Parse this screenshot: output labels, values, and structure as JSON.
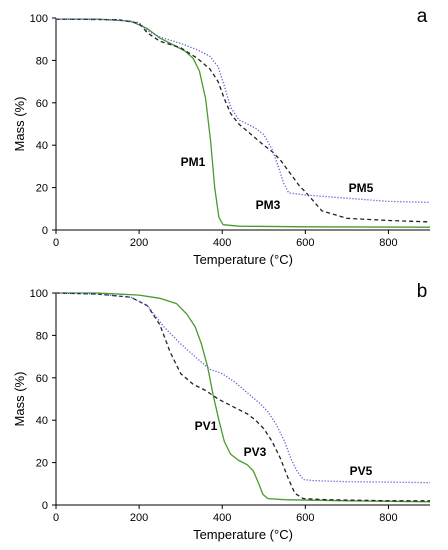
{
  "chart_data": [
    {
      "type": "line",
      "panel_label": "a",
      "xlabel": "Temperature (°C)",
      "ylabel": "Mass (%)",
      "xlim": [
        0,
        900
      ],
      "ylim": [
        0,
        100
      ],
      "xticks": [
        0,
        200,
        400,
        600,
        800
      ],
      "yticks": [
        0,
        20,
        40,
        60,
        80,
        100
      ],
      "grid": false,
      "series": [
        {
          "name": "PM1",
          "color": "#4a9a2e",
          "style": "solid",
          "points": [
            [
              0,
              99.5
            ],
            [
              100,
              99.5
            ],
            [
              180,
              98.5
            ],
            [
              220,
              95
            ],
            [
              250,
              90.5
            ],
            [
              280,
              87.5
            ],
            [
              310,
              84.5
            ],
            [
              330,
              81
            ],
            [
              345,
              75
            ],
            [
              360,
              62
            ],
            [
              372,
              42
            ],
            [
              382,
              20
            ],
            [
              392,
              6
            ],
            [
              402,
              2.5
            ],
            [
              440,
              1.8
            ],
            [
              600,
              1.5
            ],
            [
              900,
              1.3
            ]
          ]
        },
        {
          "name": "PM3",
          "color": "#222222",
          "style": "dashed",
          "points": [
            [
              0,
              99.5
            ],
            [
              150,
              99.2
            ],
            [
              200,
              97.5
            ],
            [
              220,
              93
            ],
            [
              250,
              89
            ],
            [
              300,
              86
            ],
            [
              340,
              81
            ],
            [
              370,
              76
            ],
            [
              390,
              70
            ],
            [
              405,
              62
            ],
            [
              420,
              55
            ],
            [
              440,
              50
            ],
            [
              470,
              45
            ],
            [
              500,
              40
            ],
            [
              520,
              37
            ],
            [
              540,
              33
            ],
            [
              555,
              29
            ],
            [
              570,
              25
            ],
            [
              585,
              21
            ],
            [
              600,
              18
            ],
            [
              640,
              9
            ],
            [
              700,
              5.5
            ],
            [
              800,
              4.5
            ],
            [
              900,
              3.8
            ]
          ]
        },
        {
          "name": "PM5",
          "color": "#5a5ad8",
          "style": "dotted",
          "points": [
            [
              0,
              99.5
            ],
            [
              150,
              99.2
            ],
            [
              200,
              97.8
            ],
            [
              220,
              94
            ],
            [
              250,
              91
            ],
            [
              300,
              88
            ],
            [
              340,
              85
            ],
            [
              370,
              82
            ],
            [
              390,
              77
            ],
            [
              405,
              68
            ],
            [
              420,
              58
            ],
            [
              440,
              52
            ],
            [
              460,
              50
            ],
            [
              480,
              48
            ],
            [
              500,
              45
            ],
            [
              520,
              38
            ],
            [
              535,
              30
            ],
            [
              548,
              22
            ],
            [
              560,
              17.5
            ],
            [
              600,
              16.5
            ],
            [
              700,
              15
            ],
            [
              800,
              13.5
            ],
            [
              900,
              13
            ]
          ]
        }
      ],
      "annotations": [
        "PM1",
        "PM3",
        "PM5"
      ]
    },
    {
      "type": "line",
      "panel_label": "b",
      "xlabel": "Temperature (°C)",
      "ylabel": "Mass (%)",
      "xlim": [
        0,
        900
      ],
      "ylim": [
        0,
        100
      ],
      "xticks": [
        0,
        200,
        400,
        600,
        800
      ],
      "yticks": [
        0,
        20,
        40,
        60,
        80,
        100
      ],
      "grid": false,
      "series": [
        {
          "name": "PV1",
          "color": "#4a9a2e",
          "style": "solid",
          "points": [
            [
              0,
              100
            ],
            [
              100,
              100
            ],
            [
              200,
              99
            ],
            [
              250,
              97.5
            ],
            [
              290,
              95
            ],
            [
              315,
              90
            ],
            [
              335,
              84
            ],
            [
              350,
              76
            ],
            [
              365,
              65
            ],
            [
              378,
              52
            ],
            [
              392,
              40
            ],
            [
              405,
              30
            ],
            [
              420,
              24
            ],
            [
              440,
              21
            ],
            [
              460,
              19
            ],
            [
              475,
              16
            ],
            [
              488,
              10
            ],
            [
              498,
              5
            ],
            [
              510,
              3
            ],
            [
              550,
              2.5
            ],
            [
              700,
              2
            ],
            [
              900,
              1.5
            ]
          ]
        },
        {
          "name": "PV3",
          "color": "#222222",
          "style": "dashed",
          "points": [
            [
              0,
              100
            ],
            [
              100,
              99.5
            ],
            [
              180,
              98
            ],
            [
              220,
              94
            ],
            [
              250,
              85
            ],
            [
              275,
              72
            ],
            [
              300,
              62
            ],
            [
              330,
              57
            ],
            [
              360,
              54
            ],
            [
              390,
              50
            ],
            [
              420,
              47
            ],
            [
              440,
              45
            ],
            [
              460,
              43
            ],
            [
              480,
              40
            ],
            [
              500,
              36
            ],
            [
              520,
              30
            ],
            [
              540,
              22
            ],
            [
              560,
              12
            ],
            [
              575,
              5.5
            ],
            [
              595,
              3
            ],
            [
              650,
              2.5
            ],
            [
              800,
              2
            ],
            [
              900,
              2
            ]
          ]
        },
        {
          "name": "PV5",
          "color": "#5a5ad8",
          "style": "dotted",
          "points": [
            [
              0,
              100
            ],
            [
              100,
              99.5
            ],
            [
              180,
              98
            ],
            [
              220,
              94
            ],
            [
              260,
              84
            ],
            [
              300,
              76
            ],
            [
              340,
              69
            ],
            [
              370,
              64
            ],
            [
              400,
              62
            ],
            [
              430,
              58
            ],
            [
              460,
              53
            ],
            [
              490,
              48
            ],
            [
              510,
              44
            ],
            [
              530,
              38
            ],
            [
              550,
              30
            ],
            [
              565,
              22
            ],
            [
              580,
              16
            ],
            [
              595,
              12
            ],
            [
              620,
              11.5
            ],
            [
              700,
              11
            ],
            [
              800,
              10.8
            ],
            [
              900,
              10.5
            ]
          ]
        }
      ],
      "annotations": [
        "PV1",
        "PV3",
        "PV5"
      ]
    }
  ]
}
